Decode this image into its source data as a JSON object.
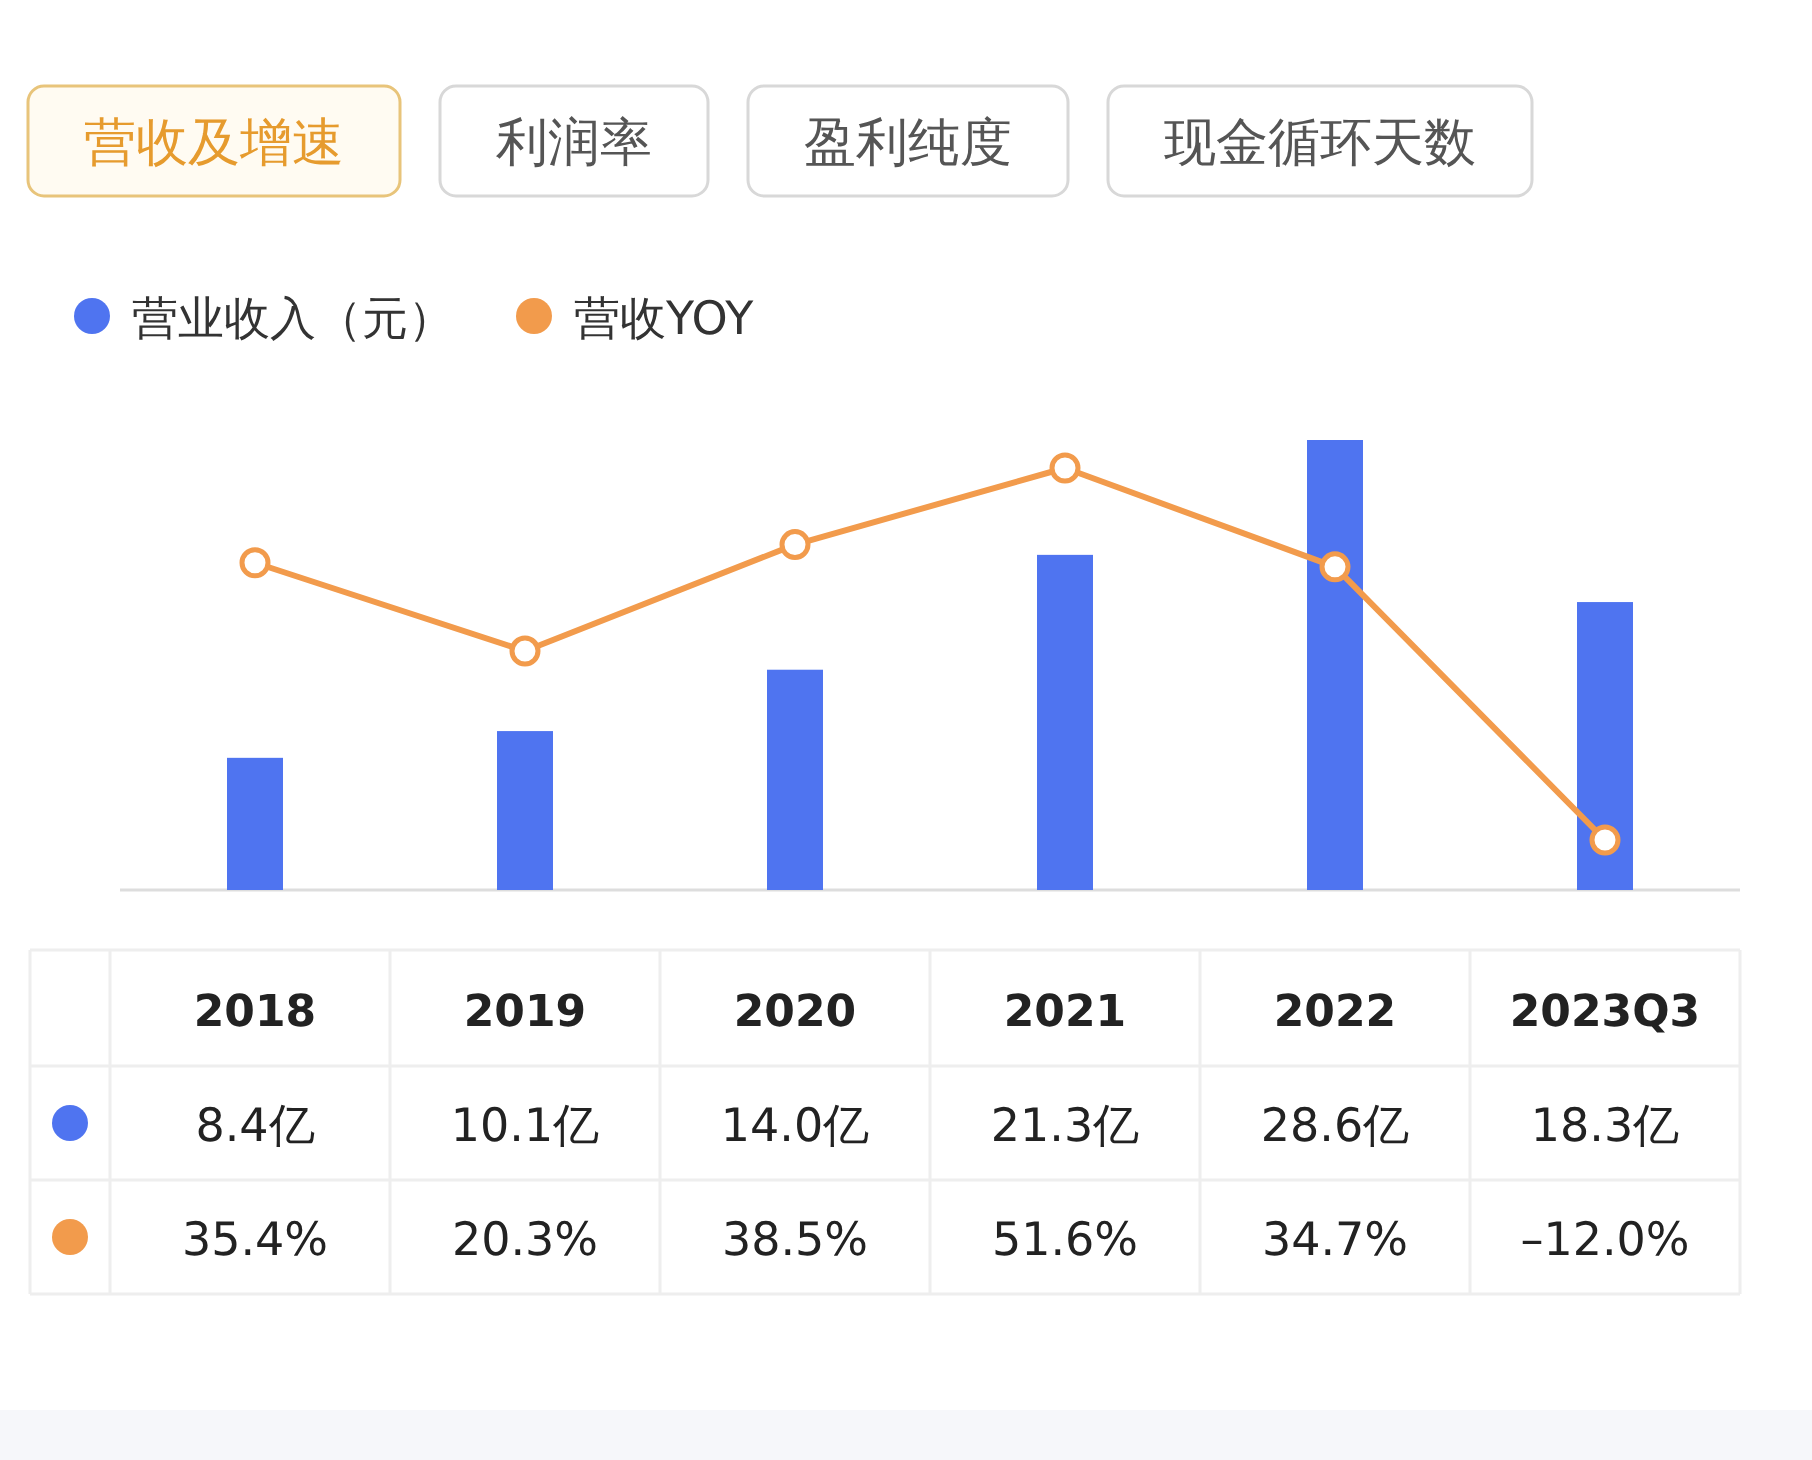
{
  "chart_data": {
    "type": "bar",
    "title": "营收及增速",
    "annotations": [
      "利润率",
      "盈利纯度",
      "现金循环天数"
    ],
    "categories": [
      "2018",
      "2019",
      "2020",
      "2021",
      "2022",
      "2023Q3"
    ],
    "series": [
      {
        "name": "营业收入（元）",
        "color": "#4f74f0",
        "values": [
          8.4,
          10.1,
          14.0,
          21.3,
          28.6,
          18.3
        ],
        "value_labels": [
          "8.4亿",
          "10.1亿",
          "14.0亿",
          "21.3亿",
          "28.6亿",
          "18.3亿"
        ]
      },
      {
        "name": "营收YOY",
        "type": "line",
        "axis": "y2",
        "color": "#f29b4c",
        "marker": "circle",
        "values": [
          35.4,
          20.3,
          38.5,
          51.6,
          34.7,
          -12.0
        ],
        "value_labels": [
          "35.4%",
          "20.3%",
          "38.5%",
          "51.6%",
          "34.7%",
          "–12.0%"
        ]
      }
    ],
    "legend": "top left"
  }
}
